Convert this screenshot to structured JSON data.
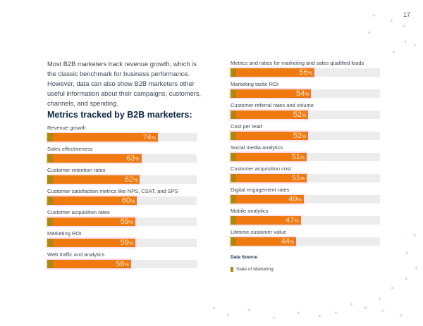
{
  "page_number": "17",
  "intro": "Most B2B marketers track revenue growth, which is the classic benchmark for business performance. However, data can also show B2B marketers other useful information about their campaigns, customers, channels, and spending.",
  "heading": "Metrics tracked by B2B marketers:",
  "colors": {
    "bar": "#ef7a10",
    "source": "#a88a10",
    "track": "#ececec"
  },
  "chart_data": {
    "type": "bar",
    "orientation": "horizontal",
    "unit": "%",
    "xlim": [
      0,
      100
    ],
    "categories": [
      "Revenue growth",
      "Sales effectiveness",
      "Customer retention rates",
      "Customer satisfaction metrics like NPS, CSAT, and SPS",
      "Customer acquisition rates",
      "Marketing ROI",
      "Web traffic and analytics",
      "Metrics and ratios for marketing and sales qualified leads",
      "Marketing tactic ROI",
      "Customer referral rates and volume",
      "Cost per lead",
      "Social media analytics",
      "Customer acquisition cost",
      "Digital engagement rates",
      "Mobile analytics",
      "Lifetime customer value"
    ],
    "values": [
      74,
      63,
      62,
      60,
      59,
      59,
      56,
      56,
      54,
      52,
      52,
      51,
      51,
      49,
      47,
      44
    ],
    "series": [
      {
        "name": "State of Marketing"
      }
    ]
  },
  "data_source": {
    "title": "Data Source",
    "legend": "State of Marketing"
  }
}
